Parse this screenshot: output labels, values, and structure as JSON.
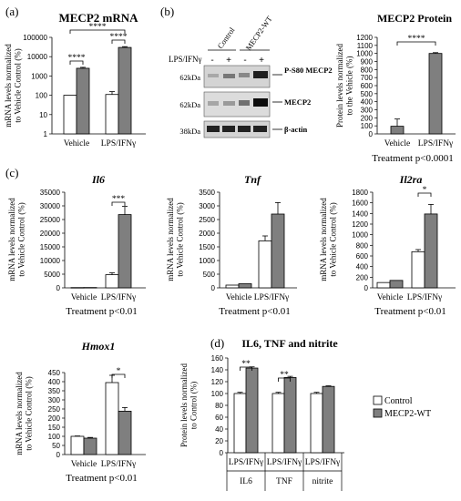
{
  "colors": {
    "control": "#ffffff",
    "mecp2": "#7f7f7f",
    "stroke": "#000000"
  },
  "legend": {
    "control": "Control",
    "mecp2": "MECP2-WT"
  },
  "panels": {
    "a": {
      "letter": "(a)"
    },
    "b": {
      "letter": "(b)",
      "lanes": [
        "Control",
        "MECP2-WT"
      ],
      "treatment_label": "LPS/IFNγ",
      "lane_signs": [
        "-",
        "+",
        "-",
        "+"
      ],
      "mw": [
        "62kDa",
        "62kDa",
        "38kDa"
      ],
      "bands": [
        "P-S80 MECP2",
        "MECP2",
        "β-actin"
      ]
    },
    "c": {
      "letter": "(c)"
    },
    "d": {
      "letter": "(d)"
    }
  },
  "chart_data": [
    {
      "id": "mecp2_mrna",
      "type": "bar",
      "title": "MECP2 mRNA",
      "ylabel": "mRNA levels normalized to Vehicle Control (%)",
      "categories": [
        "Vehicle",
        "LPS/IFNγ"
      ],
      "yscale": "log",
      "ylim": [
        1,
        100000
      ],
      "yticks": [
        "1",
        "10",
        "100",
        "1000",
        "10000",
        "100000"
      ],
      "series": [
        {
          "name": "Control",
          "values": [
            100,
            110
          ],
          "errors": [
            0,
            45
          ]
        },
        {
          "name": "MECP2-WT",
          "values": [
            2500,
            30000
          ],
          "errors": [
            300,
            3000
          ]
        }
      ],
      "annotations": [
        "****",
        "****",
        "****"
      ],
      "footer": ""
    },
    {
      "id": "mecp2_protein",
      "type": "bar",
      "title": "MECP2 Protein",
      "ylabel": "Protein levels normalized to the Vehicle (%)",
      "categories": [
        "Vehicle",
        "LPS/IFNγ"
      ],
      "ylim": [
        0,
        1200
      ],
      "yticks": [
        "0",
        "100",
        "200",
        "300",
        "400",
        "500",
        "600",
        "700",
        "800",
        "900",
        "1000",
        "1100",
        "1200"
      ],
      "series": [
        {
          "name": "",
          "values": [
            95,
            1000
          ],
          "errors": [
            90,
            10
          ]
        }
      ],
      "annotations": [
        "****"
      ],
      "footer": "Treatment p<0.0001"
    },
    {
      "id": "il6",
      "type": "bar",
      "title": "Il6",
      "ylabel": "mRNA levels normalized to Vehicle Control (%)",
      "categories": [
        "Vehicle",
        "LPS/IFNγ"
      ],
      "ylim": [
        0,
        35000
      ],
      "yticks": [
        "0",
        "5000",
        "10000",
        "15000",
        "20000",
        "25000",
        "30000",
        "35000"
      ],
      "series": [
        {
          "name": "Control",
          "values": [
            100,
            4800
          ],
          "errors": [
            0,
            700
          ]
        },
        {
          "name": "MECP2-WT",
          "values": [
            120,
            26800
          ],
          "errors": [
            0,
            3000
          ]
        }
      ],
      "annotations": [
        "***"
      ],
      "footer": "Treatment p<0.01"
    },
    {
      "id": "tnf",
      "type": "bar",
      "title": "Tnf",
      "ylabel": "mRNA levels normalized to Vehicle Control (%)",
      "categories": [
        "Vehicle",
        "LPS/IFNγ"
      ],
      "ylim": [
        0,
        3500
      ],
      "yticks": [
        "0",
        "500",
        "1000",
        "1500",
        "2000",
        "2500",
        "3000",
        "3500"
      ],
      "series": [
        {
          "name": "Control",
          "values": [
            100,
            1720
          ],
          "errors": [
            0,
            180
          ]
        },
        {
          "name": "MECP2-WT",
          "values": [
            150,
            2700
          ],
          "errors": [
            0,
            420
          ]
        }
      ],
      "annotations": [],
      "footer": "Treatment p<0.01"
    },
    {
      "id": "il2ra",
      "type": "bar",
      "title": "Il2ra",
      "ylabel": "mRNA levels normalized to Vehicle Control (%)",
      "categories": [
        "Vehicle",
        "LPS/IFNγ"
      ],
      "ylim": [
        0,
        1800
      ],
      "yticks": [
        "0",
        "200",
        "400",
        "600",
        "800",
        "1000",
        "1200",
        "1400",
        "1600",
        "1800"
      ],
      "series": [
        {
          "name": "Control",
          "values": [
            100,
            680
          ],
          "errors": [
            0,
            40
          ]
        },
        {
          "name": "MECP2-WT",
          "values": [
            140,
            1390
          ],
          "errors": [
            0,
            180
          ]
        }
      ],
      "annotations": [
        "*"
      ],
      "footer": "Treatment p<0.01"
    },
    {
      "id": "hmox1",
      "type": "bar",
      "title": "Hmox1",
      "ylabel": "mRNA levels normalized to Vehicle Control (%)",
      "categories": [
        "Vehicle",
        "LPS/IFNγ"
      ],
      "ylim": [
        0,
        450
      ],
      "yticks": [
        "0",
        "50",
        "100",
        "150",
        "200",
        "250",
        "300",
        "350",
        "400",
        "450"
      ],
      "series": [
        {
          "name": "Control",
          "values": [
            100,
            395
          ],
          "errors": [
            2,
            40
          ]
        },
        {
          "name": "MECP2-WT",
          "values": [
            90,
            238
          ],
          "errors": [
            4,
            20
          ]
        }
      ],
      "annotations": [
        "*"
      ],
      "footer": "Treatment p<0.01"
    },
    {
      "id": "il6_tnf_nitrite",
      "type": "bar",
      "title": "IL6, TNF and nitrite",
      "ylabel": "Protein levels normalized to Control (%)",
      "categories": [
        "LPS/IFNγ",
        "LPS/IFNγ",
        "LPS/IFNγ"
      ],
      "groups": [
        "IL6",
        "TNF",
        "nitrite"
      ],
      "ylim": [
        0,
        160
      ],
      "yticks": [
        "0",
        "20",
        "40",
        "60",
        "80",
        "100",
        "120",
        "140",
        "160"
      ],
      "series": [
        {
          "name": "Control",
          "values": [
            100,
            100,
            100
          ],
          "errors": [
            2,
            2,
            2
          ]
        },
        {
          "name": "MECP2-WT",
          "values": [
            143,
            127,
            112
          ],
          "errors": [
            2,
            2,
            1
          ]
        }
      ],
      "annotations": [
        "**",
        "**"
      ],
      "footer": ""
    }
  ]
}
